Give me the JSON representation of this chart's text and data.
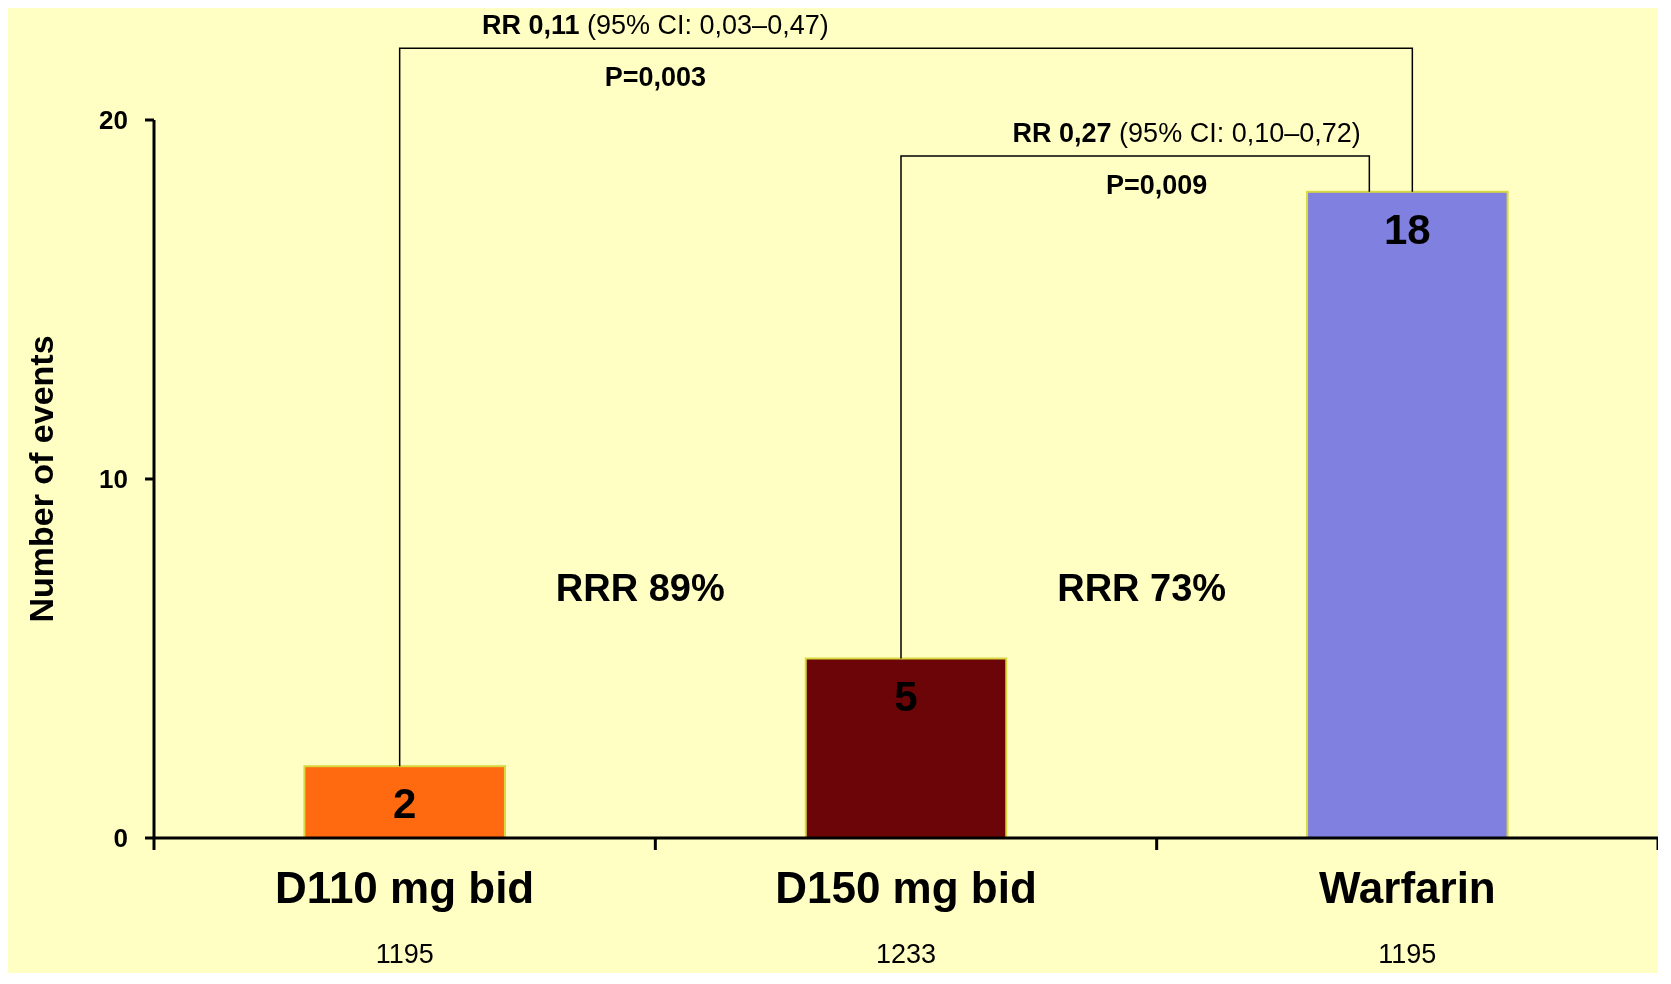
{
  "chart_data": {
    "type": "bar",
    "ylabel": "Number of events",
    "categories": [
      "D110 mg bid",
      "D150 mg bid",
      "Warfarin"
    ],
    "values": [
      2,
      5,
      18
    ],
    "colors": [
      "#ff6a10",
      "#6b0508",
      "#8080e0"
    ],
    "ylim": [
      0,
      20
    ],
    "yticks": [
      0,
      10,
      20
    ],
    "grid": false,
    "data_labels": true,
    "annotations": [
      "1195",
      "1233",
      "1195",
      "RR 0,11 (95% CI: 0,03–0,47)",
      "P=0,003",
      "RR 0,27 (95% CI: 0,10–0,72)",
      "P=0,009",
      "RRR 89%",
      "RRR 73%"
    ]
  }
}
